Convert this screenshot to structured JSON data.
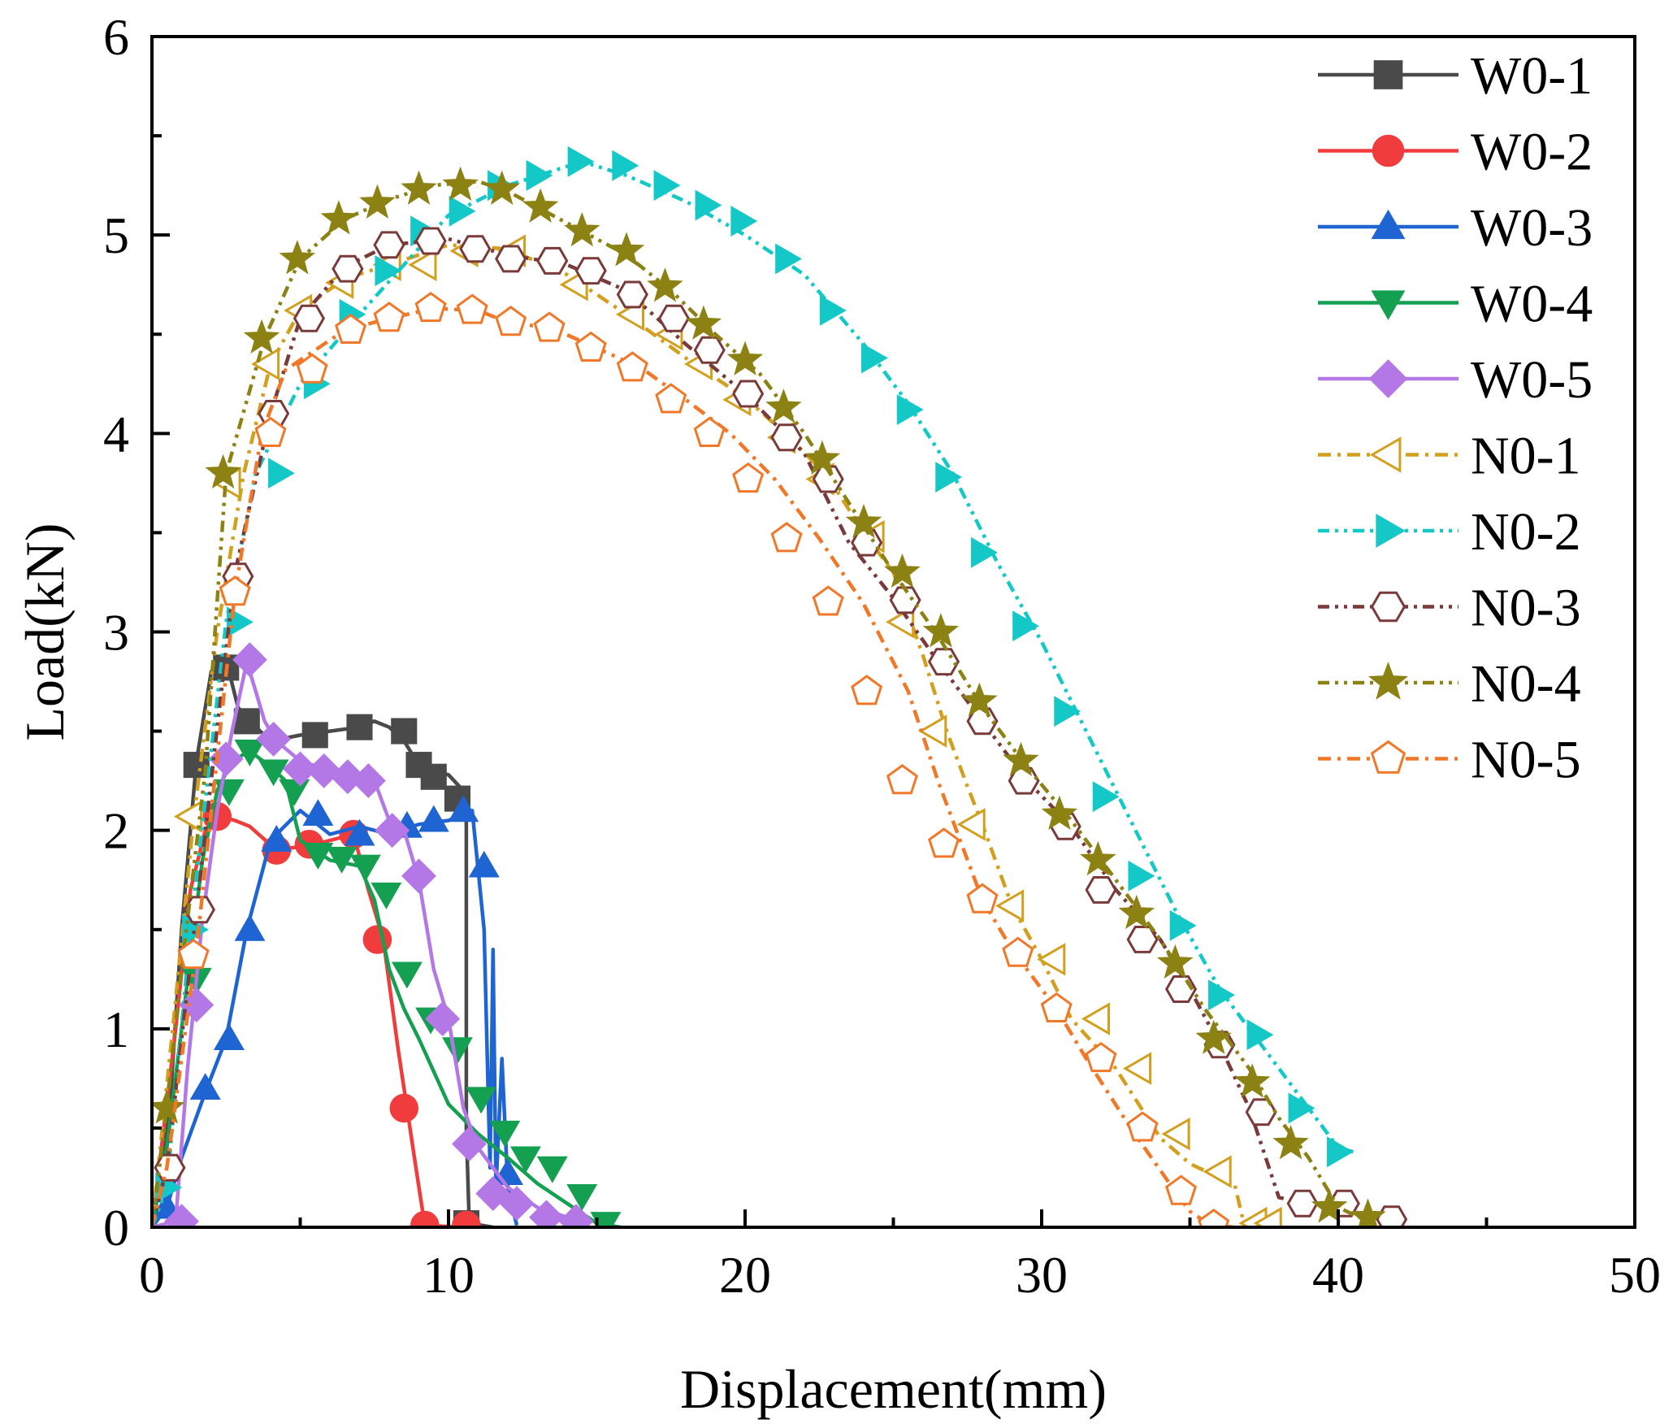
{
  "chart_data": {
    "type": "line",
    "xlabel": "Displacement(mm)",
    "ylabel": "Load(kN)",
    "xlim": [
      0,
      50
    ],
    "ylim": [
      0,
      6
    ],
    "xticks": [
      "0",
      "10",
      "20",
      "30",
      "40",
      "50"
    ],
    "yticks": [
      "0",
      "1",
      "2",
      "3",
      "4",
      "5",
      "6"
    ],
    "grid": false,
    "legend_position": "top-right",
    "series": [
      {
        "name": "W0-1",
        "color": "#4a4a4a",
        "marker": "square",
        "line": "solid",
        "x": [
          0,
          0.6,
          1.0,
          1.5,
          2.0,
          2.3,
          2.6,
          2.9,
          3.3,
          4.0,
          5.0,
          6.0,
          7.0,
          7.5,
          8.0,
          8.5,
          9.0,
          9.5,
          10.0,
          10.5,
          10.6,
          10.6,
          10.7,
          11.5
        ],
        "y": [
          0,
          0.6,
          1.5,
          2.35,
          2.8,
          2.85,
          2.8,
          2.62,
          2.55,
          2.45,
          2.48,
          2.5,
          2.52,
          2.55,
          2.52,
          2.45,
          2.33,
          2.3,
          2.28,
          2.2,
          2.15,
          0.5,
          0.02,
          0
        ],
        "mx": [
          1.5,
          2.5,
          3.2,
          5.5,
          7.0,
          8.5,
          9.0,
          9.5,
          10.3,
          10.6
        ],
        "my": [
          2.33,
          2.82,
          2.55,
          2.48,
          2.52,
          2.5,
          2.33,
          2.27,
          2.16,
          0.02
        ]
      },
      {
        "name": "W0-2",
        "color": "#f03c3c",
        "marker": "circle",
        "line": "solid",
        "x": [
          0,
          0.8,
          1.3,
          1.8,
          2.3,
          2.8,
          3.3,
          4.2,
          5.5,
          6.8,
          7.3,
          7.8,
          8.3,
          8.6,
          8.9,
          9.2,
          10.5
        ],
        "y": [
          0,
          1.0,
          1.7,
          2.0,
          2.07,
          2.05,
          2.02,
          1.9,
          1.93,
          1.98,
          1.7,
          1.45,
          0.9,
          0.6,
          0.3,
          0.01,
          0
        ],
        "mx": [
          2.2,
          4.2,
          5.3,
          6.8,
          7.6,
          8.5,
          9.2,
          10.6
        ],
        "my": [
          2.07,
          1.9,
          1.93,
          1.98,
          1.45,
          0.6,
          0.01,
          0.01
        ]
      },
      {
        "name": "W0-3",
        "color": "#1e64d2",
        "marker": "triangle-up",
        "line": "solid",
        "x": [
          0,
          0.5,
          1.0,
          1.8,
          2.5,
          3.2,
          4.0,
          5.0,
          6.0,
          7.0,
          8.0,
          9.0,
          10.0,
          10.8,
          11.0,
          11.2,
          11.4,
          11.5,
          11.6,
          11.8,
          12.0,
          12.3
        ],
        "y": [
          0,
          0.1,
          0.35,
          0.68,
          0.95,
          1.5,
          1.95,
          2.1,
          1.98,
          2.02,
          1.98,
          2.03,
          2.05,
          2.1,
          1.8,
          1.5,
          0.3,
          1.4,
          0.2,
          0.85,
          0.2,
          0.01
        ],
        "mx": [
          0.5,
          1.8,
          2.6,
          3.3,
          4.2,
          5.6,
          7.0,
          8.6,
          9.5,
          10.5,
          11.2,
          12.0
        ],
        "my": [
          0.1,
          0.7,
          0.95,
          1.5,
          1.95,
          2.08,
          1.98,
          2.02,
          2.05,
          2.1,
          1.82,
          0.27
        ]
      },
      {
        "name": "W0-4",
        "color": "#14a050",
        "marker": "triangle-down",
        "line": "solid",
        "x": [
          0,
          0.5,
          1.0,
          1.7,
          2.2,
          2.7,
          3.3,
          4.0,
          4.5,
          5.0,
          6.0,
          7.0,
          7.5,
          8.0,
          8.5,
          9.0,
          10.0,
          11.0,
          12.0,
          13.0,
          14.0,
          15.0,
          15.8
        ],
        "y": [
          0,
          0.4,
          1.0,
          1.85,
          2.2,
          2.35,
          2.4,
          2.32,
          2.25,
          1.95,
          1.85,
          1.82,
          1.65,
          1.3,
          1.1,
          0.95,
          0.62,
          0.47,
          0.35,
          0.22,
          0.12,
          0.02,
          0
        ],
        "mx": [
          1.5,
          2.6,
          3.3,
          4.1,
          4.8,
          5.6,
          6.4,
          7.2,
          7.9,
          8.6,
          9.4,
          10.3,
          11.1,
          11.9,
          12.6,
          13.5,
          14.5,
          15.3
        ],
        "my": [
          1.25,
          2.2,
          2.4,
          2.3,
          2.2,
          1.88,
          1.86,
          1.82,
          1.68,
          1.28,
          1.05,
          0.9,
          0.65,
          0.48,
          0.35,
          0.3,
          0.16,
          0.02
        ]
      },
      {
        "name": "W0-5",
        "color": "#b478e6",
        "marker": "diamond",
        "line": "solid",
        "x": [
          0,
          0.8,
          1.2,
          1.7,
          2.2,
          2.7,
          3.2,
          3.5,
          3.8,
          4.2,
          5.0,
          6.0,
          7.0,
          7.5,
          8.0,
          8.5,
          9.0,
          9.5,
          10.0,
          10.5,
          11.0,
          12.0,
          13.0,
          14.0,
          14.5
        ],
        "y": [
          0,
          0.03,
          0.8,
          1.55,
          2.1,
          2.5,
          2.85,
          2.7,
          2.55,
          2.45,
          2.35,
          2.3,
          2.28,
          2.25,
          2.05,
          2.0,
          1.75,
          1.3,
          1.05,
          0.6,
          0.4,
          0.2,
          0.1,
          0.05,
          0.03
        ],
        "mx": [
          1.0,
          1.5,
          2.5,
          3.3,
          4.1,
          5.0,
          5.8,
          6.6,
          7.3,
          8.1,
          9.0,
          9.8,
          10.7,
          11.5,
          12.3,
          13.3,
          14.3
        ],
        "my": [
          0.03,
          1.12,
          2.36,
          2.86,
          2.46,
          2.31,
          2.3,
          2.27,
          2.25,
          2.0,
          1.77,
          1.05,
          0.42,
          0.17,
          0.12,
          0.05,
          0.03
        ]
      },
      {
        "name": "N0-1",
        "color": "#d2a01e",
        "marker": "triangle-left-open",
        "line": "dashdot",
        "x": [
          0,
          0.7,
          1.4,
          2.2,
          3.1,
          4.0,
          5.0,
          6.5,
          8.0,
          10.0,
          12.0,
          14.0,
          16.0,
          18.0,
          20.0,
          21.5,
          22.8,
          24.0,
          25.0,
          26.0,
          26.8,
          27.5,
          28.0,
          29.0,
          30.0,
          31.0,
          32.5,
          34.0,
          35.0,
          36.0,
          36.5,
          36.8,
          37.8
        ],
        "y": [
          0,
          1.0,
          2.05,
          3.0,
          3.8,
          4.35,
          4.62,
          4.78,
          4.85,
          4.95,
          4.93,
          4.8,
          4.6,
          4.38,
          4.18,
          3.98,
          3.78,
          3.5,
          3.3,
          2.88,
          2.5,
          2.22,
          2.03,
          1.62,
          1.35,
          1.05,
          0.8,
          0.45,
          0.32,
          0.25,
          0.22,
          0.03,
          0
        ],
        "mx": [
          1.3,
          2.6,
          3.9,
          5.0,
          6.4,
          8.0,
          9.2,
          10.6,
          12.2,
          14.3,
          16.2,
          17.5,
          18.5,
          19.8,
          21.3,
          22.6,
          24.3,
          25.3,
          26.4,
          27.7,
          29.0,
          30.4,
          31.9,
          33.3,
          34.6,
          36.0,
          37.2,
          37.7
        ],
        "my": [
          2.07,
          3.75,
          4.35,
          4.62,
          4.76,
          4.85,
          4.85,
          4.92,
          4.92,
          4.75,
          4.6,
          4.5,
          4.35,
          4.17,
          3.98,
          3.77,
          3.48,
          3.05,
          2.5,
          2.03,
          1.62,
          1.35,
          1.05,
          0.8,
          0.47,
          0.28,
          0.02,
          0.02
        ]
      },
      {
        "name": "N0-2",
        "color": "#14c8c8",
        "marker": "triangle-right",
        "line": "dashdotdot",
        "x": [
          0,
          0.5,
          1.3,
          2.5,
          3.5,
          5.0,
          7.0,
          10.0,
          12.0,
          14.5,
          16.0,
          18.0,
          20.0,
          22.0,
          24.0,
          25.5,
          27.0,
          28.5,
          30.0,
          31.5,
          33.0,
          34.5,
          36.0,
          37.5,
          39.0,
          40.0,
          40.5
        ],
        "y": [
          0,
          0.2,
          1.5,
          3.05,
          3.8,
          4.25,
          4.6,
          5.1,
          5.25,
          5.37,
          5.3,
          5.17,
          5.0,
          4.8,
          4.45,
          4.15,
          3.8,
          3.35,
          2.95,
          2.5,
          2.05,
          1.6,
          1.2,
          0.9,
          0.6,
          0.4,
          0.38
        ],
        "mx": [
          0.5,
          1.4,
          2.9,
          4.3,
          5.5,
          6.7,
          7.9,
          9.1,
          10.4,
          11.7,
          13.0,
          14.4,
          15.9,
          17.3,
          18.7,
          19.9,
          21.4,
          22.9,
          24.3,
          25.5,
          26.8,
          28.0,
          29.4,
          30.8,
          32.1,
          33.3,
          34.7,
          36.0,
          37.3,
          38.7,
          40.0
        ],
        "my": [
          0.2,
          1.5,
          3.05,
          3.8,
          4.25,
          4.6,
          4.82,
          5.02,
          5.12,
          5.25,
          5.3,
          5.37,
          5.35,
          5.25,
          5.15,
          5.07,
          4.88,
          4.62,
          4.38,
          4.12,
          3.78,
          3.4,
          3.03,
          2.6,
          2.17,
          1.77,
          1.52,
          1.17,
          0.97,
          0.6,
          0.38
        ]
      },
      {
        "name": "N0-3",
        "color": "#7a3a3a",
        "marker": "hexagon-open",
        "line": "dashdotdot",
        "x": [
          0,
          0.5,
          1.5,
          2.8,
          4.0,
          5.0,
          6.5,
          8.0,
          10.0,
          12.0,
          14.0,
          16.0,
          18.0,
          20.0,
          22.0,
          23.5,
          25.0,
          26.5,
          28.0,
          29.5,
          31.0,
          32.5,
          34.0,
          35.0,
          36.0,
          37.0,
          38.0,
          39.0,
          40.0,
          41.0,
          42.0
        ],
        "y": [
          0,
          0.3,
          1.6,
          3.3,
          4.1,
          4.58,
          4.84,
          4.95,
          4.98,
          4.9,
          4.85,
          4.72,
          4.45,
          4.2,
          3.9,
          3.45,
          3.17,
          2.85,
          2.55,
          2.25,
          2.02,
          1.7,
          1.45,
          1.2,
          0.92,
          0.6,
          0.15,
          0.12,
          0.12,
          0.05,
          0.04
        ],
        "mx": [
          0.6,
          1.6,
          2.9,
          4.1,
          5.3,
          6.6,
          8.0,
          9.4,
          10.9,
          12.1,
          13.5,
          14.8,
          16.2,
          17.6,
          18.8,
          20.1,
          21.4,
          22.8,
          24.1,
          25.4,
          26.7,
          28.0,
          29.4,
          30.8,
          32.0,
          33.4,
          34.7,
          36.0,
          37.4,
          38.8,
          40.2,
          41.8
        ],
        "my": [
          0.3,
          1.6,
          3.28,
          4.1,
          4.58,
          4.83,
          4.95,
          4.97,
          4.93,
          4.88,
          4.87,
          4.82,
          4.7,
          4.58,
          4.42,
          4.2,
          3.98,
          3.77,
          3.45,
          3.16,
          2.85,
          2.55,
          2.25,
          2.02,
          1.7,
          1.45,
          1.2,
          0.92,
          0.58,
          0.12,
          0.12,
          0.04
        ]
      },
      {
        "name": "N0-4",
        "color": "#8c8214",
        "marker": "star",
        "line": "dashdotdot",
        "x": [
          0,
          0.5,
          1.0,
          1.8,
          2.5,
          3.8,
          5.0,
          6.5,
          8.0,
          9.5,
          11.0,
          12.0,
          13.0,
          14.5,
          16.0,
          17.5,
          19.0,
          20.5,
          22.0,
          23.5,
          25.0,
          26.5,
          28.0,
          29.5,
          31.0,
          32.5,
          34.0,
          35.5,
          37.0,
          38.0,
          39.0,
          40.0,
          41.0
        ],
        "y": [
          0,
          0.6,
          1.3,
          2.3,
          3.8,
          4.48,
          4.88,
          5.08,
          5.18,
          5.25,
          5.27,
          5.22,
          5.14,
          5.02,
          4.9,
          4.72,
          4.5,
          4.3,
          4.0,
          3.65,
          3.3,
          2.98,
          2.62,
          2.32,
          2.05,
          1.75,
          1.45,
          1.1,
          0.8,
          0.55,
          0.35,
          0.1,
          0.03
        ],
        "mx": [
          0.5,
          2.4,
          3.7,
          4.9,
          6.3,
          7.6,
          9.0,
          10.4,
          11.8,
          13.1,
          14.5,
          16.0,
          17.3,
          18.6,
          20.0,
          21.3,
          22.6,
          24.0,
          25.3,
          26.6,
          27.9,
          29.3,
          30.6,
          31.9,
          33.2,
          34.5,
          35.8,
          37.1,
          38.4,
          39.7,
          41.0
        ],
        "my": [
          0.6,
          3.8,
          4.48,
          4.88,
          5.08,
          5.16,
          5.23,
          5.25,
          5.23,
          5.14,
          5.02,
          4.92,
          4.74,
          4.55,
          4.37,
          4.13,
          3.87,
          3.55,
          3.3,
          3.0,
          2.65,
          2.35,
          2.08,
          1.85,
          1.58,
          1.33,
          0.95,
          0.73,
          0.42,
          0.1,
          0.05
        ]
      },
      {
        "name": "N0-5",
        "color": "#f07828",
        "marker": "pentagon-open",
        "line": "dashdot",
        "x": [
          0,
          0.5,
          1.5,
          2.8,
          3.7,
          4.5,
          6.5,
          8.0,
          9.5,
          11.0,
          12.0,
          13.5,
          15.0,
          16.5,
          18.0,
          19.5,
          21.0,
          22.5,
          24.0,
          25.5,
          26.5,
          28.0,
          29.0,
          30.5,
          31.5,
          33.0,
          34.5,
          35.0,
          35.7,
          36.5
        ],
        "y": [
          0,
          0.3,
          1.4,
          3.2,
          4.0,
          4.32,
          4.52,
          4.58,
          4.63,
          4.62,
          4.56,
          4.53,
          4.43,
          4.33,
          4.17,
          4.0,
          3.77,
          3.47,
          3.14,
          2.7,
          2.25,
          1.65,
          1.4,
          1.1,
          0.85,
          0.5,
          0.18,
          0.08,
          0.01,
          0
        ],
        "mx": [
          1.4,
          2.8,
          4.0,
          5.4,
          6.7,
          8.0,
          9.4,
          10.8,
          12.1,
          13.4,
          14.8,
          16.2,
          17.5,
          18.8,
          20.1,
          21.4,
          22.8,
          24.1,
          25.3,
          26.7,
          28.0,
          29.2,
          30.5,
          32.0,
          33.4,
          34.7,
          35.8
        ],
        "my": [
          1.37,
          3.2,
          4.0,
          4.32,
          4.52,
          4.58,
          4.63,
          4.62,
          4.56,
          4.53,
          4.43,
          4.33,
          4.17,
          4.0,
          3.77,
          3.47,
          3.15,
          2.7,
          2.25,
          1.93,
          1.65,
          1.38,
          1.1,
          0.85,
          0.5,
          0.18,
          0.01
        ]
      }
    ]
  }
}
